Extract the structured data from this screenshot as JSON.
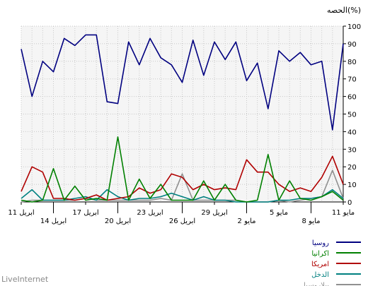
{
  "chart_data": {
    "type": "line",
    "ylabel": "الحصه(%)",
    "ylim": [
      0,
      100
    ],
    "yticks": [
      0,
      10,
      20,
      30,
      40,
      50,
      60,
      70,
      80,
      90,
      100
    ],
    "grid": true,
    "legend_position": "bottom-right",
    "x_tick_labels": [
      {
        "index": 0,
        "label": "11 مايو"
      },
      {
        "index": 3,
        "label": "8 مايو"
      },
      {
        "index": 6,
        "label": "5 مايو"
      },
      {
        "index": 9,
        "label": "2 مايو"
      },
      {
        "index": 12,
        "label": "29 ابريل"
      },
      {
        "index": 15,
        "label": "26 ابريل"
      },
      {
        "index": 18,
        "label": "23 ابريل"
      },
      {
        "index": 21,
        "label": "20 ابريل"
      },
      {
        "index": 24,
        "label": "17 ابريل"
      },
      {
        "index": 27,
        "label": "14 ابريل"
      },
      {
        "index": 30,
        "label": "11 ابريل"
      }
    ],
    "series": [
      {
        "name": "روسيا",
        "color": "#000080",
        "values": [
          87,
          60,
          80,
          74,
          93,
          89,
          95,
          95,
          57,
          56,
          91,
          78,
          93,
          82,
          78,
          68,
          92,
          72,
          91,
          81,
          91,
          69,
          79,
          53,
          86,
          80,
          85,
          78,
          80,
          41,
          90
        ]
      },
      {
        "name": "اكرانيا",
        "color": "#008000",
        "values": [
          1,
          0,
          1,
          19,
          1,
          9,
          1,
          2,
          1,
          37,
          1,
          13,
          2,
          10,
          1,
          1,
          1,
          12,
          1,
          10,
          1,
          0,
          1,
          27,
          1,
          12,
          2,
          1,
          3,
          6,
          1
        ]
      },
      {
        "name": "امريكا",
        "color": "#b00000",
        "values": [
          6,
          20,
          17,
          2,
          2,
          1,
          2,
          4,
          1,
          2,
          3,
          8,
          5,
          7,
          16,
          14,
          7,
          10,
          7,
          8,
          7,
          24,
          17,
          17,
          10,
          6,
          8,
          6,
          14,
          26,
          10
        ]
      },
      {
        "name": "الدخل",
        "color": "#008080",
        "values": [
          2,
          7,
          1,
          1,
          1,
          2,
          3,
          1,
          7,
          3,
          1,
          2,
          2,
          3,
          5,
          3,
          1,
          3,
          1,
          1,
          0,
          0,
          0,
          0,
          1,
          1,
          2,
          2,
          3,
          7,
          2
        ]
      },
      {
        "name": "بيلاروسيا",
        "color": "#909090",
        "values": [
          0,
          1,
          1,
          1,
          1,
          1,
          2,
          1,
          1,
          1,
          1,
          1,
          1,
          2,
          1,
          16,
          1,
          1,
          1,
          1,
          1,
          0,
          0,
          0,
          1,
          0,
          1,
          2,
          3,
          18,
          2
        ]
      }
    ]
  },
  "footer": {
    "brand": "LiveInternet"
  }
}
